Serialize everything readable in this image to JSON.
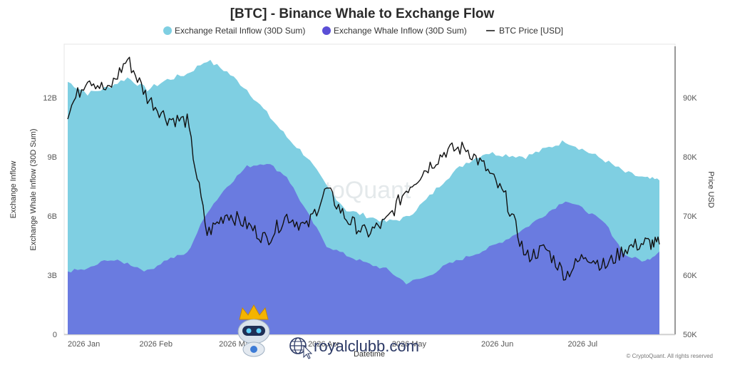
{
  "chart_data": {
    "type": "area",
    "title": "[BTC] - Binance Whale to Exchange Flow",
    "xlabel": "Datetime",
    "ylabel": "Exchange Inflow",
    "ylabel_line2": "Exchange Whale Inflow (30D Sum)",
    "y2label": "Price USD",
    "x_ticks": [
      "2026 Jan",
      "2026 Feb",
      "2026 Mar",
      "2026 Apr",
      "2026 May",
      "2026 Jun",
      "2026 Jul"
    ],
    "y_ticks": [
      "0",
      "3B",
      "6B",
      "9B",
      "12B"
    ],
    "y2_ticks": [
      "50K",
      "60K",
      "70K",
      "80K",
      "90K"
    ],
    "ylim": [
      0,
      14.7
    ],
    "y2lim": [
      50000,
      99000
    ],
    "x_days": [
      "2026-01-01",
      "2026-01-08",
      "2026-01-15",
      "2026-01-22",
      "2026-01-29",
      "2026-02-05",
      "2026-02-12",
      "2026-02-19",
      "2026-02-26",
      "2026-03-05",
      "2026-03-12",
      "2026-03-19",
      "2026-03-26",
      "2026-04-02",
      "2026-04-09",
      "2026-04-16",
      "2026-04-23",
      "2026-04-30",
      "2026-05-07",
      "2026-05-14",
      "2026-05-21",
      "2026-05-28",
      "2026-06-04",
      "2026-06-11",
      "2026-06-18",
      "2026-06-25",
      "2026-07-02",
      "2026-07-09",
      "2026-07-16",
      "2026-07-23",
      "2026-07-28"
    ],
    "series": [
      {
        "name": "Exchange Retail Inflow (30D Sum)",
        "color": "#7fcfe2",
        "unit": "B",
        "values": [
          12.8,
          12.2,
          12.5,
          13.0,
          12.4,
          12.9,
          13.2,
          13.9,
          13.3,
          12.4,
          11.2,
          10.0,
          9.0,
          7.5,
          6.3,
          6.0,
          5.7,
          5.9,
          6.8,
          7.9,
          8.7,
          9.2,
          9.1,
          9.0,
          9.4,
          9.8,
          9.3,
          8.8,
          8.2,
          7.9,
          7.8
        ]
      },
      {
        "name": "Exchange Whale Inflow (30D Sum)",
        "color": "#6a7be0",
        "unit": "B",
        "values": [
          3.2,
          3.3,
          3.8,
          3.6,
          3.2,
          3.8,
          4.1,
          6.2,
          7.5,
          8.5,
          8.7,
          8.0,
          6.2,
          4.5,
          4.0,
          3.6,
          3.3,
          2.6,
          2.9,
          3.5,
          3.9,
          4.3,
          4.8,
          5.4,
          6.1,
          6.8,
          6.3,
          5.6,
          4.0,
          3.7,
          4.2
        ]
      },
      {
        "name": "BTC Price [USD]",
        "color": "#111111",
        "axis": "right",
        "values": [
          87500,
          93500,
          91000,
          96500,
          90000,
          86500,
          86000,
          67000,
          70500,
          68500,
          66000,
          70000,
          68000,
          74500,
          69500,
          67000,
          69000,
          74500,
          78000,
          81000,
          81500,
          78000,
          73000,
          63000,
          64500,
          60000,
          63500,
          61500,
          64500,
          65500,
          65200
        ]
      }
    ],
    "legend": "top-center",
    "grid": false
  },
  "watermark": "CryptoQuant",
  "credit": "© CryptoQuant. All rights reserved",
  "overlay": {
    "site": "royalclubb.com"
  }
}
